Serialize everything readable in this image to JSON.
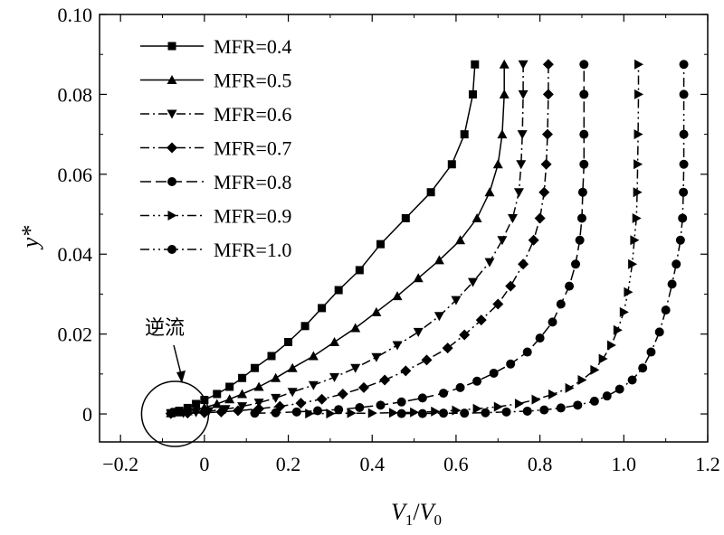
{
  "chart_data": {
    "type": "line",
    "title": "",
    "xlabel": "V1/V0",
    "xlabel_parts": {
      "v": "V",
      "sub1": "1",
      "slash": "/",
      "v2": "V",
      "sub2": "0"
    },
    "ylabel": "y*",
    "xlim": [
      -0.25,
      1.2
    ],
    "ylim": [
      -0.007,
      0.1
    ],
    "xticks": [
      -0.2,
      0,
      0.2,
      0.4,
      0.6,
      0.8,
      1.0,
      1.2
    ],
    "xtick_labels": [
      "−0.2",
      "0",
      "0.2",
      "0.4",
      "0.6",
      "0.8",
      "1.0",
      "1.2"
    ],
    "yticks": [
      0,
      0.02,
      0.04,
      0.06,
      0.08,
      0.1
    ],
    "ytick_labels": [
      "0",
      "0.02",
      "0.04",
      "0.06",
      "0.08",
      "0.10"
    ],
    "legend_position": "top-left",
    "annotation": {
      "text": "逆流",
      "target_x": -0.07,
      "target_y": 0.0
    },
    "series": [
      {
        "name": "MFR=0.4",
        "marker": "square",
        "dash": "",
        "points": [
          [
            -0.08,
            0.0002
          ],
          [
            -0.07,
            0.0005
          ],
          [
            -0.06,
            0.0008
          ],
          [
            -0.04,
            0.0015
          ],
          [
            -0.02,
            0.0025
          ],
          [
            0,
            0.0035
          ],
          [
            0.03,
            0.005
          ],
          [
            0.06,
            0.0068
          ],
          [
            0.09,
            0.009
          ],
          [
            0.12,
            0.0115
          ],
          [
            0.16,
            0.0145
          ],
          [
            0.2,
            0.018
          ],
          [
            0.24,
            0.022
          ],
          [
            0.28,
            0.0265
          ],
          [
            0.32,
            0.031
          ],
          [
            0.37,
            0.036
          ],
          [
            0.42,
            0.0425
          ],
          [
            0.48,
            0.049
          ],
          [
            0.54,
            0.0555
          ],
          [
            0.59,
            0.0625
          ],
          [
            0.62,
            0.07
          ],
          [
            0.64,
            0.08
          ],
          [
            0.645,
            0.0875
          ]
        ]
      },
      {
        "name": "MFR=0.5",
        "marker": "triangle-up",
        "dash": "",
        "points": [
          [
            -0.08,
            0.0002
          ],
          [
            -0.06,
            0.0004
          ],
          [
            -0.04,
            0.0007
          ],
          [
            -0.02,
            0.0011
          ],
          [
            0,
            0.0016
          ],
          [
            0.03,
            0.0025
          ],
          [
            0.06,
            0.0037
          ],
          [
            0.09,
            0.005
          ],
          [
            0.13,
            0.0068
          ],
          [
            0.17,
            0.009
          ],
          [
            0.21,
            0.0115
          ],
          [
            0.26,
            0.0145
          ],
          [
            0.31,
            0.018
          ],
          [
            0.36,
            0.0215
          ],
          [
            0.41,
            0.0255
          ],
          [
            0.46,
            0.0295
          ],
          [
            0.51,
            0.034
          ],
          [
            0.56,
            0.0385
          ],
          [
            0.61,
            0.0435
          ],
          [
            0.65,
            0.049
          ],
          [
            0.68,
            0.0555
          ],
          [
            0.7,
            0.0625
          ],
          [
            0.71,
            0.07
          ],
          [
            0.715,
            0.08
          ],
          [
            0.715,
            0.0875
          ]
        ]
      },
      {
        "name": "MFR=0.6",
        "marker": "triangle-down",
        "dash": "10 4 2 4",
        "points": [
          [
            -0.08,
            0.0001
          ],
          [
            -0.05,
            0.0002
          ],
          [
            -0.02,
            0.0004
          ],
          [
            0.01,
            0.0007
          ],
          [
            0.05,
            0.0012
          ],
          [
            0.09,
            0.0019
          ],
          [
            0.13,
            0.0028
          ],
          [
            0.17,
            0.004
          ],
          [
            0.21,
            0.0055
          ],
          [
            0.26,
            0.0072
          ],
          [
            0.31,
            0.0092
          ],
          [
            0.36,
            0.0115
          ],
          [
            0.41,
            0.0142
          ],
          [
            0.46,
            0.0172
          ],
          [
            0.51,
            0.0205
          ],
          [
            0.56,
            0.0245
          ],
          [
            0.6,
            0.0285
          ],
          [
            0.64,
            0.033
          ],
          [
            0.68,
            0.038
          ],
          [
            0.71,
            0.0435
          ],
          [
            0.735,
            0.049
          ],
          [
            0.75,
            0.0555
          ],
          [
            0.755,
            0.0625
          ],
          [
            0.758,
            0.07
          ],
          [
            0.76,
            0.08
          ],
          [
            0.76,
            0.0875
          ]
        ]
      },
      {
        "name": "MFR=0.7",
        "marker": "diamond",
        "dash": "10 4 2 4",
        "points": [
          [
            -0.08,
            0.0001
          ],
          [
            -0.04,
            0.0002
          ],
          [
            0,
            0.0003
          ],
          [
            0.04,
            0.0005
          ],
          [
            0.08,
            0.0008
          ],
          [
            0.13,
            0.0013
          ],
          [
            0.18,
            0.0019
          ],
          [
            0.23,
            0.0027
          ],
          [
            0.28,
            0.0037
          ],
          [
            0.33,
            0.005
          ],
          [
            0.38,
            0.0066
          ],
          [
            0.43,
            0.0085
          ],
          [
            0.48,
            0.0108
          ],
          [
            0.53,
            0.0135
          ],
          [
            0.58,
            0.0165
          ],
          [
            0.62,
            0.0198
          ],
          [
            0.66,
            0.0235
          ],
          [
            0.7,
            0.0275
          ],
          [
            0.73,
            0.032
          ],
          [
            0.76,
            0.0375
          ],
          [
            0.785,
            0.0435
          ],
          [
            0.8,
            0.049
          ],
          [
            0.81,
            0.0555
          ],
          [
            0.815,
            0.0625
          ],
          [
            0.818,
            0.07
          ],
          [
            0.82,
            0.08
          ],
          [
            0.82,
            0.0875
          ]
        ]
      },
      {
        "name": "MFR=0.8",
        "marker": "circle",
        "dash": "12 5",
        "points": [
          [
            0.12,
            0.0002
          ],
          [
            0.17,
            0.0003
          ],
          [
            0.22,
            0.0005
          ],
          [
            0.27,
            0.0008
          ],
          [
            0.32,
            0.0011
          ],
          [
            0.37,
            0.0016
          ],
          [
            0.42,
            0.0022
          ],
          [
            0.47,
            0.003
          ],
          [
            0.52,
            0.004
          ],
          [
            0.57,
            0.0052
          ],
          [
            0.61,
            0.0066
          ],
          [
            0.65,
            0.0082
          ],
          [
            0.69,
            0.0102
          ],
          [
            0.73,
            0.0125
          ],
          [
            0.77,
            0.0155
          ],
          [
            0.8,
            0.019
          ],
          [
            0.83,
            0.023
          ],
          [
            0.85,
            0.0275
          ],
          [
            0.87,
            0.032
          ],
          [
            0.885,
            0.0375
          ],
          [
            0.895,
            0.0435
          ],
          [
            0.9,
            0.049
          ],
          [
            0.902,
            0.0555
          ],
          [
            0.905,
            0.0625
          ],
          [
            0.905,
            0.07
          ],
          [
            0.905,
            0.08
          ],
          [
            0.905,
            0.0875
          ]
        ]
      },
      {
        "name": "MFR=0.9",
        "marker": "triangle-right",
        "dash": "10 4 2 4 2 4",
        "points": [
          [
            0.25,
            0.0001
          ],
          [
            0.3,
            0.0001
          ],
          [
            0.35,
            0.0002
          ],
          [
            0.4,
            0.0002
          ],
          [
            0.45,
            0.0003
          ],
          [
            0.5,
            0.0004
          ],
          [
            0.55,
            0.0006
          ],
          [
            0.6,
            0.0009
          ],
          [
            0.65,
            0.0013
          ],
          [
            0.7,
            0.0018
          ],
          [
            0.75,
            0.0026
          ],
          [
            0.79,
            0.0036
          ],
          [
            0.83,
            0.0049
          ],
          [
            0.87,
            0.0065
          ],
          [
            0.9,
            0.0085
          ],
          [
            0.93,
            0.011
          ],
          [
            0.95,
            0.0138
          ],
          [
            0.97,
            0.0172
          ],
          [
            0.985,
            0.021
          ],
          [
            1.0,
            0.0255
          ],
          [
            1.01,
            0.0305
          ],
          [
            1.02,
            0.0375
          ],
          [
            1.025,
            0.0435
          ],
          [
            1.03,
            0.049
          ],
          [
            1.032,
            0.0555
          ],
          [
            1.033,
            0.0625
          ],
          [
            1.034,
            0.07
          ],
          [
            1.035,
            0.08
          ],
          [
            1.035,
            0.0875
          ]
        ]
      },
      {
        "name": "MFR=1.0",
        "marker": "circle",
        "dash": "10 4 2 4 2 4",
        "points": [
          [
            0.47,
            0.0001
          ],
          [
            0.52,
            0.0001
          ],
          [
            0.57,
            0.0002
          ],
          [
            0.62,
            0.0002
          ],
          [
            0.67,
            0.0003
          ],
          [
            0.72,
            0.0005
          ],
          [
            0.77,
            0.0007
          ],
          [
            0.81,
            0.001
          ],
          [
            0.85,
            0.0015
          ],
          [
            0.89,
            0.0022
          ],
          [
            0.93,
            0.0032
          ],
          [
            0.96,
            0.0045
          ],
          [
            0.99,
            0.0062
          ],
          [
            1.02,
            0.0085
          ],
          [
            1.045,
            0.0115
          ],
          [
            1.065,
            0.0155
          ],
          [
            1.085,
            0.0205
          ],
          [
            1.1,
            0.026
          ],
          [
            1.115,
            0.0325
          ],
          [
            1.125,
            0.0375
          ],
          [
            1.135,
            0.0435
          ],
          [
            1.14,
            0.049
          ],
          [
            1.142,
            0.0555
          ],
          [
            1.143,
            0.0625
          ],
          [
            1.143,
            0.07
          ],
          [
            1.143,
            0.08
          ],
          [
            1.143,
            0.0875
          ]
        ]
      }
    ]
  }
}
